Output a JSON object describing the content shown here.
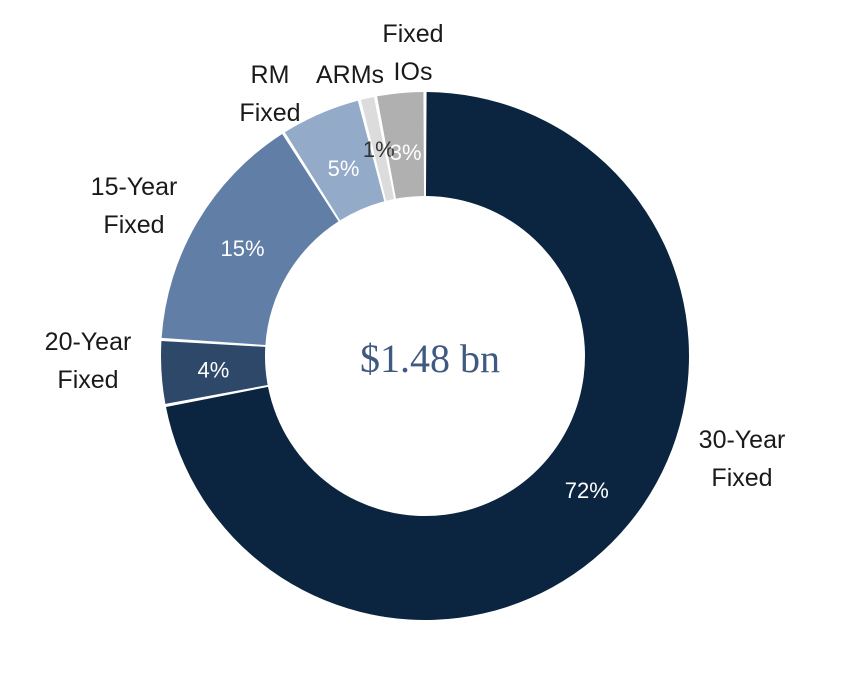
{
  "chart_data": {
    "type": "pie",
    "subtype": "donut",
    "center_text": "$1.48 bn",
    "slices": [
      {
        "label_lines": [
          "30-Year",
          "Fixed"
        ],
        "value_label": "72%",
        "value": 72,
        "color": "#0b2540",
        "text_color": "#ffffff"
      },
      {
        "label_lines": [
          "20-Year",
          "Fixed"
        ],
        "value_label": "4%",
        "value": 4,
        "color": "#2d4868",
        "text_color": "#ffffff"
      },
      {
        "label_lines": [
          "15-Year",
          "Fixed"
        ],
        "value_label": "15%",
        "value": 15,
        "color": "#617fa6",
        "text_color": "#ffffff"
      },
      {
        "label_lines": [
          "RM",
          "Fixed"
        ],
        "value_label": "5%",
        "value": 5,
        "color": "#93aac8",
        "text_color": "#ffffff"
      },
      {
        "label_lines": [
          "ARMs"
        ],
        "value_label": "1%",
        "value": 1,
        "color": "#dcdcdc",
        "text_color": "#333333"
      },
      {
        "label_lines": [
          "Fixed",
          "IOs"
        ],
        "value_label": "3%",
        "value": 3,
        "color": "#b0b0b0",
        "text_color": "#ffffff"
      }
    ]
  }
}
